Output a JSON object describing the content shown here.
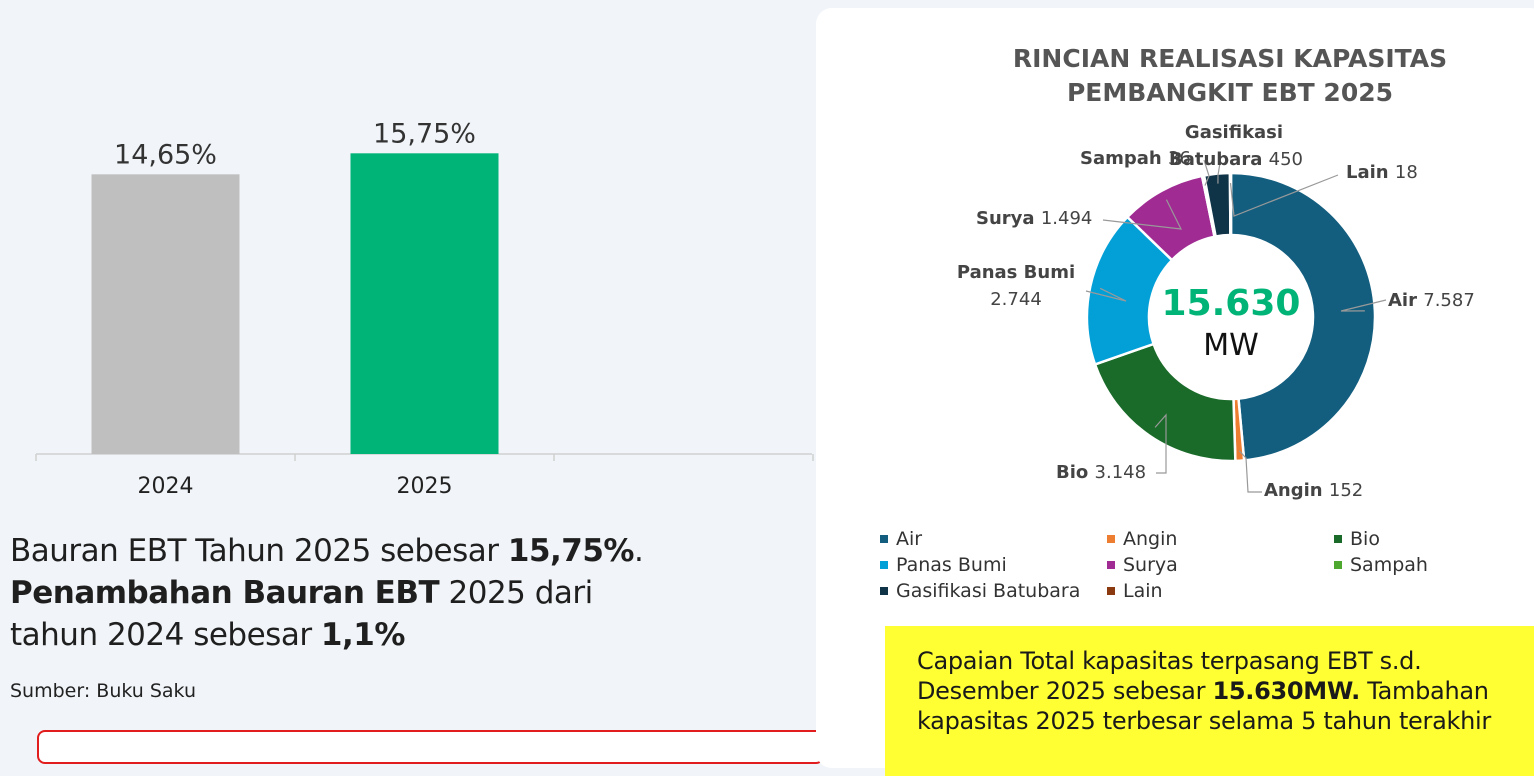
{
  "chart_data": [
    {
      "type": "bar",
      "categories": [
        "2024",
        "2025"
      ],
      "values": [
        14.65,
        15.75
      ],
      "data_labels": [
        "14,65%",
        "15,75%"
      ],
      "colors": [
        "#bfbfbf",
        "#00b377"
      ],
      "ylim": [
        0,
        16.5
      ],
      "title": "",
      "xlabel": "",
      "ylabel": ""
    },
    {
      "type": "pie",
      "title": "RINCIAN REALISASI KAPASITAS PEMBANGKIT EBT 2025",
      "title_lines": [
        "RINCIAN REALISASI KAPASITAS",
        "PEMBANGKIT EBT 2025"
      ],
      "center_value": "15.630",
      "center_unit": "MW",
      "slices": [
        {
          "name": "Air",
          "value": 7587,
          "label": "7.587",
          "color": "#135e7f"
        },
        {
          "name": "Angin",
          "value": 152,
          "label": "152",
          "color": "#ed7d31"
        },
        {
          "name": "Bio",
          "value": 3148,
          "label": "3.148",
          "color": "#1a6b2a"
        },
        {
          "name": "Panas Bumi",
          "value": 2744,
          "label": "2.744",
          "color": "#03a0d8"
        },
        {
          "name": "Surya",
          "value": 1494,
          "label": "1.494",
          "color": "#a02b93"
        },
        {
          "name": "Sampah",
          "value": 36,
          "label": "36",
          "color": "#4ea72e"
        },
        {
          "name": "Gasifikasi Batubara",
          "value": 450,
          "label": "450",
          "color": "#0f3447"
        },
        {
          "name": "Lain",
          "value": 18,
          "label": "18",
          "color": "#8b3a0f"
        }
      ],
      "legend_placement": "bottom"
    }
  ],
  "summary": {
    "line1_pre": "Bauran EBT Tahun 2025 sebesar ",
    "line1_bold": "15,75%",
    "line1_post": ".",
    "line2_bold": "Penambahan Bauran EBT",
    "line2_post": " 2025 dari",
    "line3_pre": "tahun 2024 sebesar ",
    "line3_bold": "1,1%"
  },
  "source": "Sumber: Buku Saku",
  "highlight": {
    "line1": "Capaian Total kapasitas terpasang EBT s.d.",
    "line2_pre": "Desember 2025 sebesar ",
    "line2_bold": "15.630MW.",
    "line2_post": " Tambahan",
    "line3": "kapasitas 2025 terbesar selama 5 tahun terakhir"
  }
}
